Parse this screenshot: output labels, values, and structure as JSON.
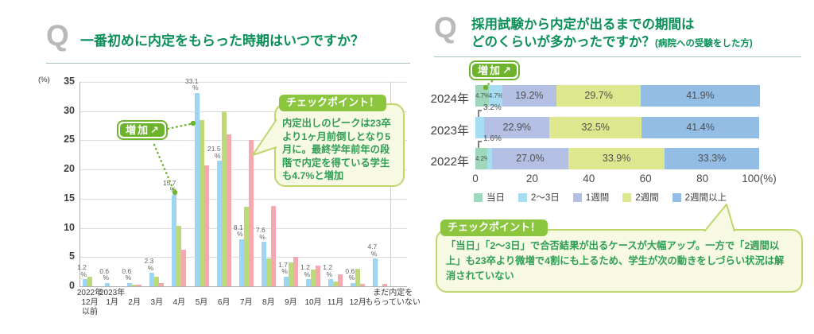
{
  "left": {
    "q_label": "Q",
    "title": "一番初めに内定をもらった時期はいつですか？",
    "badge": {
      "text": "増加",
      "arrow": "↗"
    },
    "checkpoint": {
      "tab": "チェックポイント！",
      "body": "内定出しのピークは23卒より1ヶ月前倒しとなり5月に。最終学年前年の段階で内定を得ている学生も4.7%と増加"
    }
  },
  "right": {
    "q_label": "Q",
    "title_line1": "採用試験から内定が出るまでの期間は",
    "title_line2": "どのくらいが多かったですか？",
    "title_note": "(病院への受験をした方)",
    "badge": {
      "text": "増加",
      "arrow": "↗"
    },
    "checkpoint": {
      "tab": "チェックポイント！",
      "body": "「当日」「2～3日」で合否結果が出るケースが大幅アップ。一方で「2週間以上」も23卒より微増で4割にも上るため、学生が次の動きをしづらい状況は解消されていない"
    }
  },
  "chart_data": [
    {
      "type": "bar",
      "title": "一番初めに内定をもらった時期はいつですか？",
      "ylabel": "(%)",
      "ylim": [
        0,
        35
      ],
      "ytick_step": 5,
      "grid": true,
      "categories": [
        "2022年\n12月\n以前",
        "2023年\n1月",
        "\n2月",
        "\n3月",
        "\n4月",
        "\n5月",
        "\n6月",
        "\n7月",
        "\n8月",
        "\n9月",
        "\n10月",
        "\n11月",
        "\n12月",
        "まだ内定を\nもらっていない"
      ],
      "series": [
        {
          "name": "blue",
          "color": "#9ed5f2",
          "show_value_labels": true,
          "values": [
            1.2,
            0.6,
            0.6,
            2.3,
            15.7,
            33.1,
            21.5,
            8.1,
            7.6,
            1.7,
            1.2,
            1.2,
            0.6,
            4.7
          ]
        },
        {
          "name": "green",
          "color": "#bdda7b",
          "values": [
            1.7,
            0,
            0.3,
            1.7,
            10.4,
            28.5,
            30,
            13.6,
            4.8,
            4.1,
            2.9,
            0.8,
            3,
            0
          ]
        },
        {
          "name": "pink",
          "color": "#f5a9ae",
          "values": [
            0,
            0,
            0.3,
            0.5,
            6.3,
            20.7,
            26,
            25,
            13.8,
            5.1,
            3.6,
            2.1,
            0.4,
            0.4
          ]
        }
      ]
    },
    {
      "type": "bar",
      "orientation": "horizontal-stacked",
      "categories": [
        "2024年",
        "2023年",
        "2022年"
      ],
      "xlim": [
        0,
        100
      ],
      "xticks": [
        "0",
        "20",
        "40",
        "60",
        "80",
        "100(%)"
      ],
      "legend_position": "bottom",
      "series": [
        {
          "name": "当日",
          "color": "#9fd7bc",
          "values": [
            4.7,
            0,
            4.2
          ]
        },
        {
          "name": "2～3日",
          "color": "#a6ddf3",
          "values": [
            4.7,
            3.2,
            1.6
          ]
        },
        {
          "name": "1週間",
          "color": "#b3c0e4",
          "values": [
            19.2,
            22.9,
            27.0
          ]
        },
        {
          "name": "2週間",
          "color": "#dde88e",
          "values": [
            29.7,
            32.5,
            33.9
          ]
        },
        {
          "name": "2週間以上",
          "color": "#93bde5",
          "values": [
            41.9,
            41.4,
            33.3
          ]
        }
      ],
      "label_modes": [
        [
          "tiny",
          "tiny",
          "in",
          "in",
          "in"
        ],
        [
          "none",
          "bracket",
          "in",
          "in",
          "in"
        ],
        [
          "tiny",
          "bracket",
          "in",
          "in",
          "in"
        ]
      ]
    }
  ]
}
